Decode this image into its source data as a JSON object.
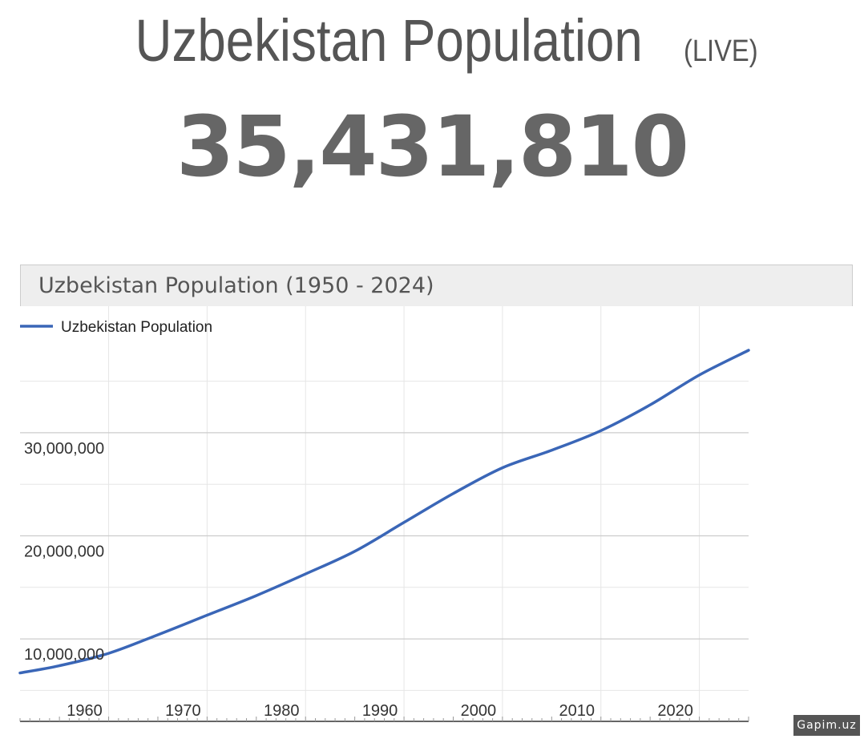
{
  "page": {
    "title": "Uzbekistan Population",
    "title_suffix": "(LIVE)",
    "live_count": "35,431,810",
    "watermark": "Gapim.uz"
  },
  "colors": {
    "line": "#3a66b7",
    "text": "#555555",
    "grid_major": "#cccccc",
    "grid_minor": "#e6e6e6"
  },
  "chart_data": {
    "type": "line",
    "title": "Uzbekistan Population (1950 - 2024)",
    "xlabel": "",
    "ylabel": "",
    "legend_position": "top-left",
    "grid": true,
    "xlim": [
      1951,
      2025
    ],
    "ylim": [
      2000000,
      38000000
    ],
    "x_ticks": [
      1960,
      1970,
      1980,
      1990,
      2000,
      2010,
      2020
    ],
    "x_tick_labels": [
      "1960",
      "1970",
      "1980",
      "1990",
      "2000",
      "2010",
      "2020"
    ],
    "y_ticks": [
      10000000,
      20000000,
      30000000
    ],
    "y_tick_labels": [
      "10,000,000",
      "20,000,000",
      "30,000,000"
    ],
    "series": [
      {
        "name": "Uzbekistan Population",
        "x": [
          1951,
          1955,
          1960,
          1965,
          1970,
          1975,
          1980,
          1985,
          1990,
          1995,
          2000,
          2005,
          2010,
          2015,
          2020,
          2025
        ],
        "y": [
          6700000,
          7400000,
          8600000,
          10400000,
          12300000,
          14200000,
          16300000,
          18500000,
          21300000,
          24100000,
          26600000,
          28300000,
          30200000,
          32700000,
          35600000,
          38000000
        ]
      }
    ]
  }
}
